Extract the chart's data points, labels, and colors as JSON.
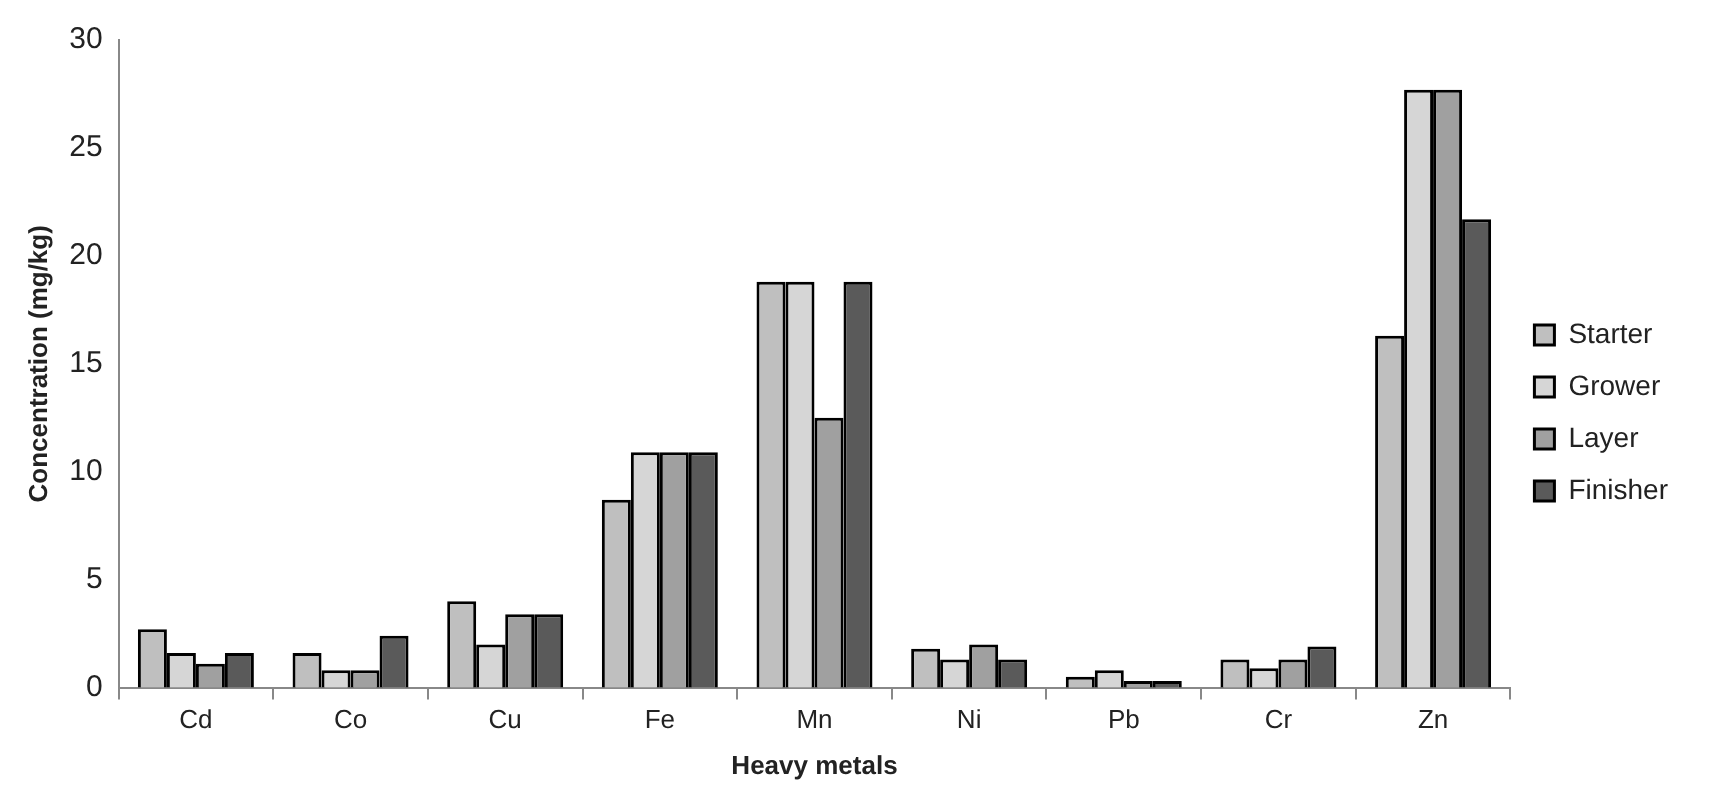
{
  "chart_data": {
    "type": "bar",
    "xlabel": "Heavy metals",
    "ylabel": "Concentration (mg/kg)",
    "categories": [
      "Cd",
      "Co",
      "Cu",
      "Fe",
      "Mn",
      "Ni",
      "Pb",
      "Cr",
      "Zn"
    ],
    "series": [
      {
        "name": "Starter",
        "color": "#bfbfbf",
        "values": [
          2.7,
          1.6,
          4.0,
          8.7,
          18.8,
          1.8,
          0.5,
          1.3,
          16.3
        ]
      },
      {
        "name": "Grower",
        "color": "#d6d6d6",
        "values": [
          1.6,
          0.8,
          2.0,
          10.9,
          18.8,
          1.3,
          0.8,
          0.9,
          27.7
        ]
      },
      {
        "name": "Layer",
        "color": "#a0a0a0",
        "values": [
          1.1,
          0.8,
          3.4,
          10.9,
          12.5,
          2.0,
          0.3,
          1.3,
          27.7
        ]
      },
      {
        "name": "Finisher",
        "color": "#5a5a5a",
        "values": [
          1.6,
          2.4,
          3.4,
          10.9,
          18.8,
          1.3,
          0.3,
          1.9,
          21.7
        ]
      }
    ],
    "ylim": [
      0,
      30
    ],
    "yticks": [
      0,
      5,
      10,
      15,
      20,
      25,
      30
    ],
    "grid": false,
    "legend": "right"
  }
}
